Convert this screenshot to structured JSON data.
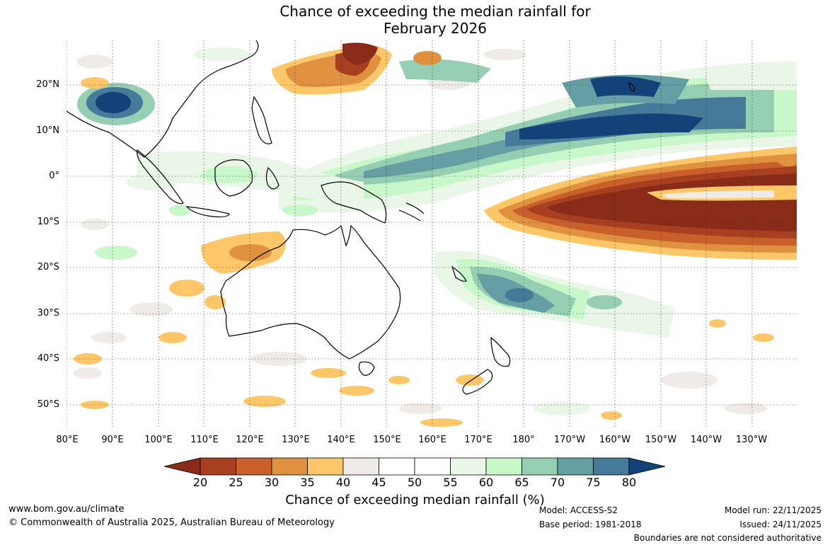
{
  "title": {
    "line1": "Chance of exceeding the median rainfall for",
    "line2": "February 2026"
  },
  "map": {
    "lat_labels": [
      "20°N",
      "10°N",
      "0°",
      "10°S",
      "20°S",
      "30°S",
      "40°S",
      "50°S"
    ],
    "lon_labels": [
      "80°E",
      "90°E",
      "100°E",
      "110°E",
      "120°E",
      "130°E",
      "140°E",
      "150°E",
      "160°E",
      "170°E",
      "180°",
      "170°W",
      "160°W",
      "150°W",
      "140°W",
      "130°W"
    ]
  },
  "legend": {
    "title": "Chance of exceeding median rainfall (%)",
    "ticks": [
      "20",
      "25",
      "30",
      "35",
      "40",
      "45",
      "50",
      "55",
      "60",
      "65",
      "70",
      "75",
      "80"
    ],
    "colors": [
      "#8a2a18",
      "#a83f20",
      "#c9602c",
      "#e0913f",
      "#fdc668",
      "#efece7",
      "#ffffff",
      "#ffffff",
      "#e9f6e8",
      "#c8f8c9",
      "#96ceb3",
      "#659ea3",
      "#457a98",
      "#124277"
    ]
  },
  "footer": {
    "website": "www.bom.gov.au/climate",
    "copyright": "© Commonwealth of Australia 2025, Australian Bureau of Meteorology",
    "model": "Model: ACCESS-S2",
    "base_period": "Base period: 1981-2018",
    "model_run": "Model run: 22/11/2025",
    "issued": "Issued: 24/11/2025",
    "boundaries": "Boundaries are not considered authoritative"
  }
}
